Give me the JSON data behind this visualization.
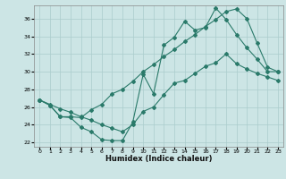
{
  "xlabel": "Humidex (Indice chaleur)",
  "ylabel": "",
  "bg_color": "#cce5e5",
  "grid_color": "#aacccc",
  "line_color": "#2a7a6a",
  "xlim": [
    -0.5,
    23.5
  ],
  "ylim": [
    21.5,
    37.5
  ],
  "yticks": [
    22,
    24,
    26,
    28,
    30,
    32,
    34,
    36
  ],
  "xticks": [
    0,
    1,
    2,
    3,
    4,
    5,
    6,
    7,
    8,
    9,
    10,
    11,
    12,
    13,
    14,
    15,
    16,
    17,
    18,
    19,
    20,
    21,
    22,
    23
  ],
  "series": [
    [
      26.8,
      26.2,
      24.9,
      24.8,
      23.7,
      23.2,
      22.3,
      22.2,
      22.2,
      24.3,
      29.7,
      27.5,
      33.0,
      33.9,
      35.7,
      34.7,
      35.0,
      37.2,
      35.9,
      34.2,
      32.7,
      31.4,
      30.0,
      30.0
    ],
    [
      26.8,
      26.2,
      24.9,
      24.9,
      24.8,
      25.7,
      26.3,
      27.5,
      28.0,
      28.9,
      30.0,
      30.8,
      31.7,
      32.5,
      33.4,
      34.2,
      35.1,
      35.9,
      36.8,
      37.1,
      36.0,
      33.2,
      30.5,
      30.0
    ],
    [
      26.8,
      26.3,
      25.8,
      25.4,
      24.9,
      24.5,
      24.0,
      23.6,
      23.2,
      24.0,
      25.5,
      26.0,
      27.4,
      28.7,
      29.0,
      29.8,
      30.6,
      31.0,
      32.0,
      30.9,
      30.3,
      29.8,
      29.4,
      29.0
    ]
  ]
}
